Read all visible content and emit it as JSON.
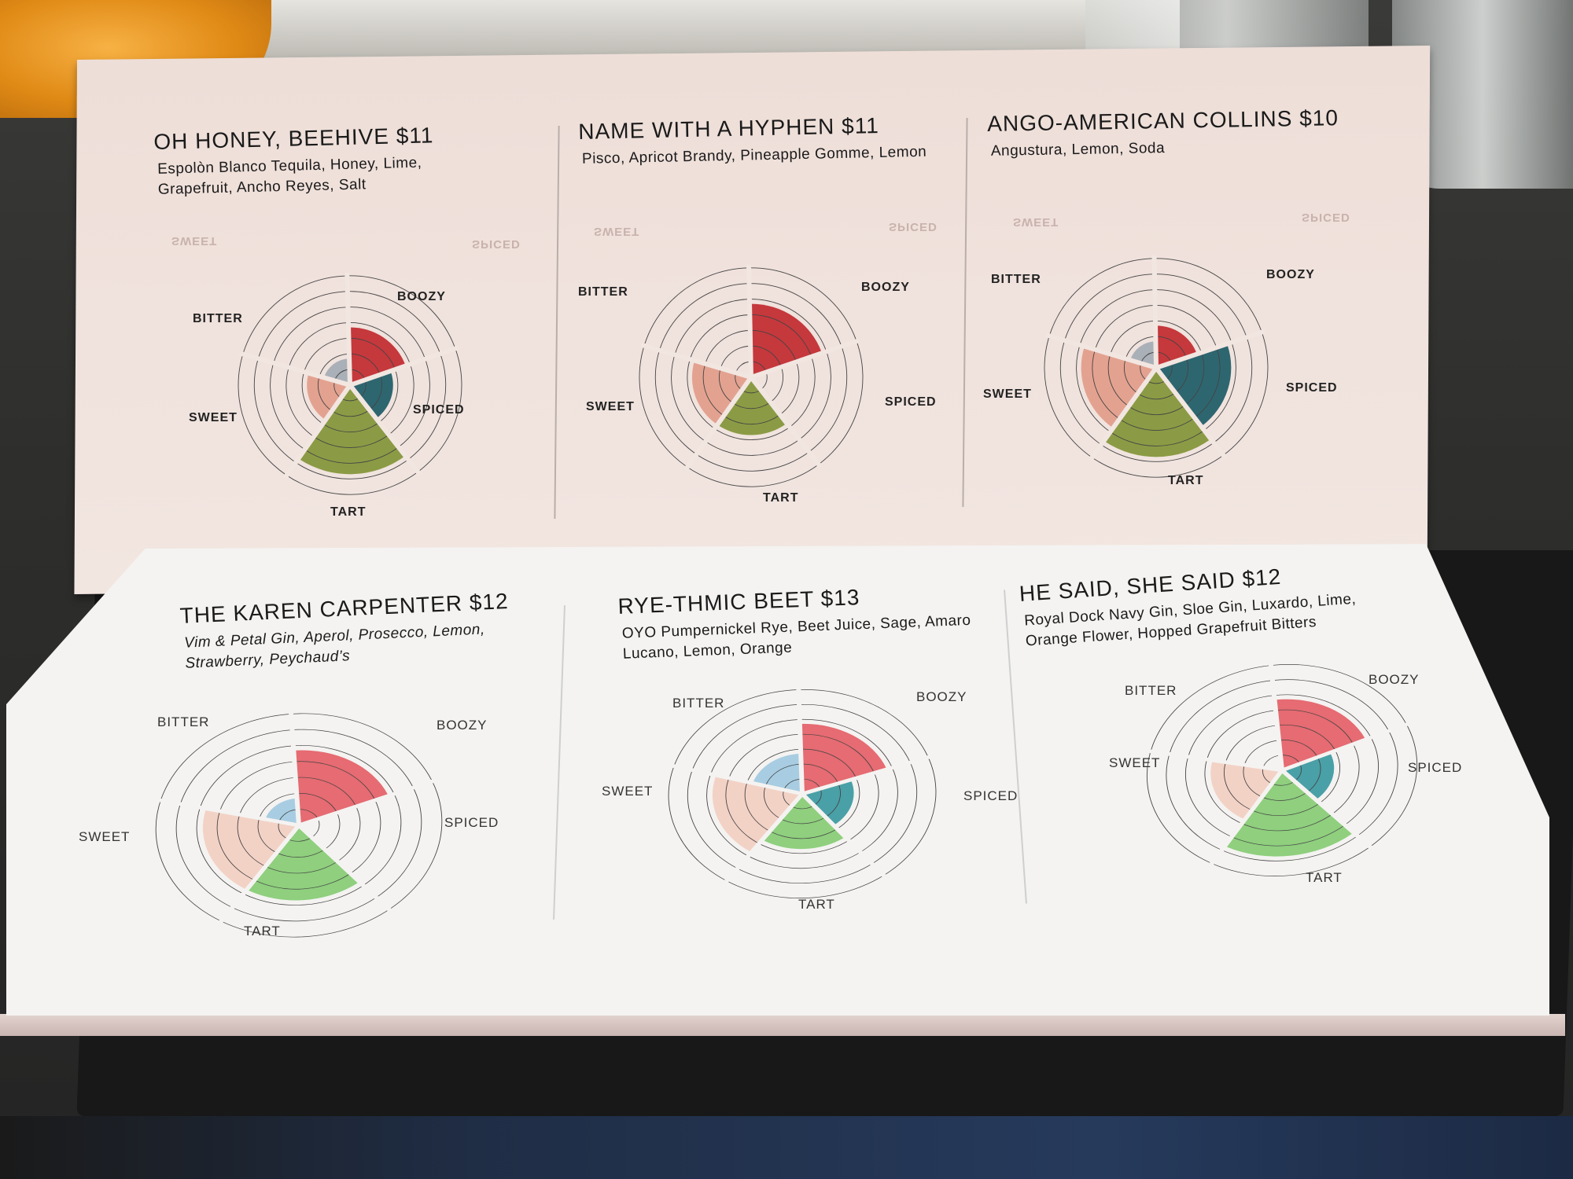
{
  "menu": {
    "axes": [
      "BOOZY",
      "SPICED",
      "TART",
      "SWEET",
      "BITTER"
    ],
    "axis_colors": {
      "back": [
        "#c5383c",
        "#2e6670",
        "#8b9b45",
        "#e3a290",
        "#aab0b8"
      ],
      "front": [
        "#e66b72",
        "#4aa0a7",
        "#8fcf7e",
        "#f3d2c6",
        "#a8cde2"
      ]
    },
    "drinks": [
      {
        "name": "OH HONEY, BEEHIVE $11",
        "ingredients": "Espolòn Blanco Tequila, Honey, Lime, Grapefruit, Ancho Reyes, Salt",
        "levels": [
          3,
          2,
          5,
          2,
          1
        ]
      },
      {
        "name": "NAME WITH A HYPHEN $11",
        "ingredients": "Pisco, Apricot Brandy, Pineapple Gomme, Lemon",
        "levels": [
          4,
          0,
          3,
          3,
          0
        ]
      },
      {
        "name": "ANGO-AMERICAN COLLINS $10",
        "ingredients": "Angustura, Lemon, Soda",
        "levels": [
          2,
          4,
          5,
          4,
          1
        ]
      },
      {
        "name": "THE KAREN CARPENTER $12",
        "ingredients": "Vim & Petal Gin, Aperol, Prosecco, Lemon, Strawberry, Peychaud’s",
        "levels": [
          4,
          0,
          4,
          4,
          1
        ]
      },
      {
        "name": "RYE-THMIC BEET $13",
        "ingredients": "OYO Pumpernickel Rye, Beet Juice, Sage, Amaro Lucano, Lemon, Orange",
        "levels": [
          4,
          2,
          3,
          4,
          2
        ]
      },
      {
        "name": "HE SAID, SHE SAID $12",
        "ingredients": "Royal Dock Navy Gin, Sloe Gin, Luxardo, Lime, Orange Flower, Hopped Grapefruit Bitters",
        "levels": [
          4,
          2,
          5,
          3,
          0
        ]
      }
    ]
  }
}
